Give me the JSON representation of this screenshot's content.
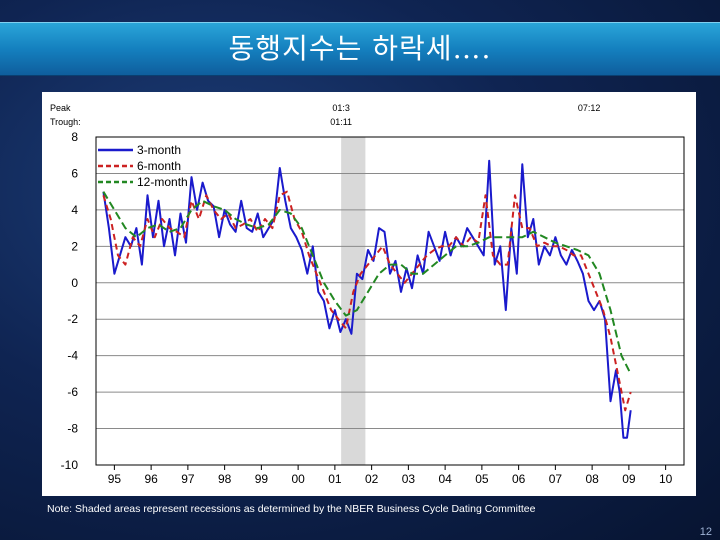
{
  "slide": {
    "title": "동행지수는 하락세….",
    "footnote": "Note: Shaded areas represent recessions as determined by the NBER Business Cycle Dating Committee",
    "page_number": "12"
  },
  "chart_data": {
    "type": "line",
    "ylim": [
      -10,
      8
    ],
    "y_ticks": [
      8,
      6,
      4,
      2,
      0,
      -2,
      -4,
      -6,
      -8,
      -10
    ],
    "y_tick_labels": [
      "8",
      "6",
      "4",
      "2",
      "0",
      "-2",
      "-4",
      "-6",
      "-8",
      "-10"
    ],
    "xlim": [
      1994.5,
      2010.5
    ],
    "x_tick_labels": [
      "95",
      "96",
      "97",
      "98",
      "99",
      "00",
      "01",
      "02",
      "03",
      "04",
      "05",
      "06",
      "07",
      "08",
      "09",
      "10"
    ],
    "x_tick_positions": [
      1995,
      1996,
      1997,
      1998,
      1999,
      2000,
      2001,
      2002,
      2003,
      2004,
      2005,
      2006,
      2007,
      2008,
      2009,
      2010
    ],
    "grid": true,
    "legend_position": "top-left",
    "recession_band": [
      2001.17,
      2001.83
    ],
    "markers": {
      "peak_label": "Peak",
      "trough_label": "Trough:",
      "peaks": [
        {
          "x": 2001.17,
          "label": "01:3"
        },
        {
          "x": 2007.92,
          "label": "07:12"
        }
      ],
      "troughs": [
        {
          "x": 2001.17,
          "label": "01:11"
        }
      ]
    },
    "series": [
      {
        "name": "3-month",
        "color": "#1a1acc",
        "dash": "solid",
        "x": [
          1994.7,
          1994.85,
          1995.0,
          1995.15,
          1995.3,
          1995.45,
          1995.6,
          1995.75,
          1995.9,
          1996.05,
          1996.2,
          1996.35,
          1996.5,
          1996.65,
          1996.8,
          1996.95,
          1997.1,
          1997.25,
          1997.4,
          1997.55,
          1997.7,
          1997.85,
          1998.0,
          1998.15,
          1998.3,
          1998.45,
          1998.6,
          1998.75,
          1998.9,
          1999.05,
          1999.2,
          1999.35,
          1999.5,
          1999.65,
          1999.8,
          1999.95,
          2000.1,
          2000.25,
          2000.4,
          2000.55,
          2000.7,
          2000.85,
          2001.0,
          2001.15,
          2001.3,
          2001.45,
          2001.6,
          2001.75,
          2001.9,
          2002.05,
          2002.2,
          2002.35,
          2002.5,
          2002.65,
          2002.8,
          2002.95,
          2003.1,
          2003.25,
          2003.4,
          2003.55,
          2003.7,
          2003.85,
          2004.0,
          2004.15,
          2004.3,
          2004.45,
          2004.6,
          2004.75,
          2004.9,
          2005.05,
          2005.2,
          2005.35,
          2005.5,
          2005.65,
          2005.8,
          2005.95,
          2006.1,
          2006.25,
          2006.4,
          2006.55,
          2006.7,
          2006.85,
          2007.0,
          2007.15,
          2007.3,
          2007.45,
          2007.6,
          2007.75,
          2007.9,
          2008.05,
          2008.2,
          2008.35,
          2008.5,
          2008.65,
          2008.75,
          2008.85,
          2008.95,
          2009.05
        ],
        "values": [
          5.0,
          3.0,
          0.5,
          1.5,
          2.5,
          2.0,
          3.0,
          1.0,
          4.8,
          2.5,
          4.5,
          2.0,
          3.5,
          1.5,
          3.8,
          2.2,
          5.8,
          4.0,
          5.5,
          4.5,
          4.2,
          2.5,
          4.0,
          3.2,
          2.8,
          4.5,
          3.0,
          2.8,
          3.8,
          2.5,
          3.0,
          3.5,
          6.3,
          4.5,
          3.0,
          2.5,
          1.8,
          0.5,
          2.0,
          -0.5,
          -1.0,
          -2.5,
          -1.5,
          -2.7,
          -2.0,
          -2.8,
          0.5,
          0.2,
          1.8,
          1.2,
          3.0,
          2.8,
          0.5,
          1.2,
          -0.5,
          0.8,
          -0.3,
          1.5,
          0.5,
          2.8,
          2.0,
          1.2,
          2.8,
          1.5,
          2.5,
          2.0,
          3.0,
          2.5,
          2.0,
          1.5,
          6.7,
          1.0,
          2.0,
          -1.5,
          3.0,
          0.5,
          6.5,
          2.5,
          3.5,
          1.0,
          2.0,
          1.5,
          2.5,
          1.5,
          1.0,
          1.8,
          1.2,
          0.5,
          -1.0,
          -1.5,
          -1.0,
          -2.0,
          -6.5,
          -4.8,
          -6.0,
          -8.5,
          -8.5,
          -7.0
        ]
      },
      {
        "name": "6-month",
        "color": "#cc2222",
        "dash": "6,4",
        "x": [
          1994.7,
          1994.9,
          1995.1,
          1995.3,
          1995.5,
          1995.7,
          1995.9,
          1996.1,
          1996.3,
          1996.5,
          1996.7,
          1996.9,
          1997.1,
          1997.3,
          1997.5,
          1997.7,
          1997.9,
          1998.1,
          1998.3,
          1998.5,
          1998.7,
          1998.9,
          1999.1,
          1999.3,
          1999.5,
          1999.7,
          1999.9,
          2000.1,
          2000.3,
          2000.5,
          2000.7,
          2000.9,
          2001.1,
          2001.3,
          2001.5,
          2001.7,
          2001.9,
          2002.1,
          2002.3,
          2002.5,
          2002.7,
          2002.9,
          2003.1,
          2003.3,
          2003.5,
          2003.7,
          2003.9,
          2004.1,
          2004.3,
          2004.5,
          2004.7,
          2004.9,
          2005.1,
          2005.3,
          2005.5,
          2005.7,
          2005.9,
          2006.1,
          2006.3,
          2006.5,
          2006.7,
          2006.9,
          2007.1,
          2007.3,
          2007.5,
          2007.7,
          2007.9,
          2008.1,
          2008.3,
          2008.5,
          2008.7,
          2008.9,
          2009.05
        ],
        "values": [
          4.8,
          3.5,
          1.5,
          1.0,
          2.5,
          2.0,
          3.5,
          2.5,
          3.5,
          3.0,
          2.8,
          2.5,
          4.5,
          3.5,
          4.8,
          4.0,
          3.5,
          3.8,
          3.0,
          3.2,
          3.5,
          2.8,
          3.5,
          3.0,
          4.8,
          5.0,
          3.5,
          2.8,
          1.5,
          0.5,
          -0.5,
          -1.5,
          -2.0,
          -2.5,
          -0.5,
          0.5,
          1.0,
          1.5,
          2.0,
          1.0,
          0.5,
          0.0,
          0.5,
          1.0,
          1.5,
          1.8,
          2.0,
          2.0,
          2.5,
          2.0,
          2.5,
          2.2,
          4.8,
          1.5,
          1.0,
          1.0,
          4.8,
          3.0,
          3.0,
          2.0,
          2.2,
          2.0,
          2.0,
          1.8,
          1.5,
          1.5,
          0.5,
          -0.5,
          -1.5,
          -3.0,
          -5.0,
          -7.0,
          -6.0
        ]
      },
      {
        "name": "12-month",
        "color": "#228822",
        "dash": "8,4",
        "x": [
          1994.7,
          1995.0,
          1995.3,
          1995.6,
          1995.9,
          1996.2,
          1996.5,
          1996.8,
          1997.1,
          1997.4,
          1997.7,
          1998.0,
          1998.3,
          1998.6,
          1998.9,
          1999.2,
          1999.5,
          1999.8,
          2000.1,
          2000.4,
          2000.7,
          2001.0,
          2001.3,
          2001.6,
          2001.9,
          2002.2,
          2002.5,
          2002.8,
          2003.1,
          2003.4,
          2003.7,
          2004.0,
          2004.3,
          2004.6,
          2004.9,
          2005.2,
          2005.5,
          2005.8,
          2006.1,
          2006.4,
          2006.7,
          2007.0,
          2007.3,
          2007.6,
          2007.9,
          2008.2,
          2008.5,
          2008.8,
          2009.05
        ],
        "values": [
          5.0,
          4.0,
          3.0,
          2.5,
          3.0,
          3.2,
          2.8,
          3.0,
          4.0,
          4.5,
          4.2,
          4.0,
          3.5,
          3.2,
          3.0,
          3.2,
          4.0,
          3.8,
          3.0,
          1.5,
          0.0,
          -1.0,
          -1.8,
          -1.5,
          -0.5,
          0.5,
          1.0,
          1.0,
          0.5,
          0.5,
          1.0,
          1.5,
          2.0,
          2.0,
          2.2,
          2.5,
          2.5,
          2.5,
          2.5,
          2.8,
          2.5,
          2.2,
          2.0,
          1.8,
          1.5,
          0.5,
          -1.5,
          -4.0,
          -5.0
        ]
      }
    ]
  }
}
